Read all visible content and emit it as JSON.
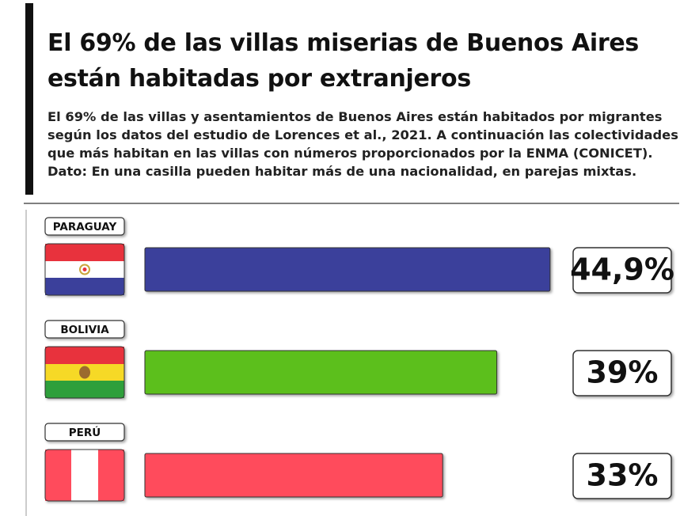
{
  "chart_data": {
    "type": "bar",
    "title": "El 69% de las villas miserias de Buenos Aires están habitadas por extranjeros",
    "subtitle": [
      "El 69% de las villas y asentamientos de Buenos Aires están habitados por migrantes",
      "según los datos del estudio de Lorences et al., 2021. A continuación las colectividades",
      "que más habitan en las villas con números proporcionados por la ENMA (CONICET).",
      "Dato: En una casilla pueden habitar más de una nacionalidad, en parejas mixtas."
    ],
    "categories": [
      "PARAGUAY",
      "BOLIVIA",
      "PERÚ"
    ],
    "values": [
      44.9,
      39,
      33
    ],
    "value_labels": [
      "44,9%",
      "39%",
      "33%"
    ],
    "colors": [
      "#3a3f9b",
      "#5cbf1c",
      "#ff4c5b"
    ]
  }
}
